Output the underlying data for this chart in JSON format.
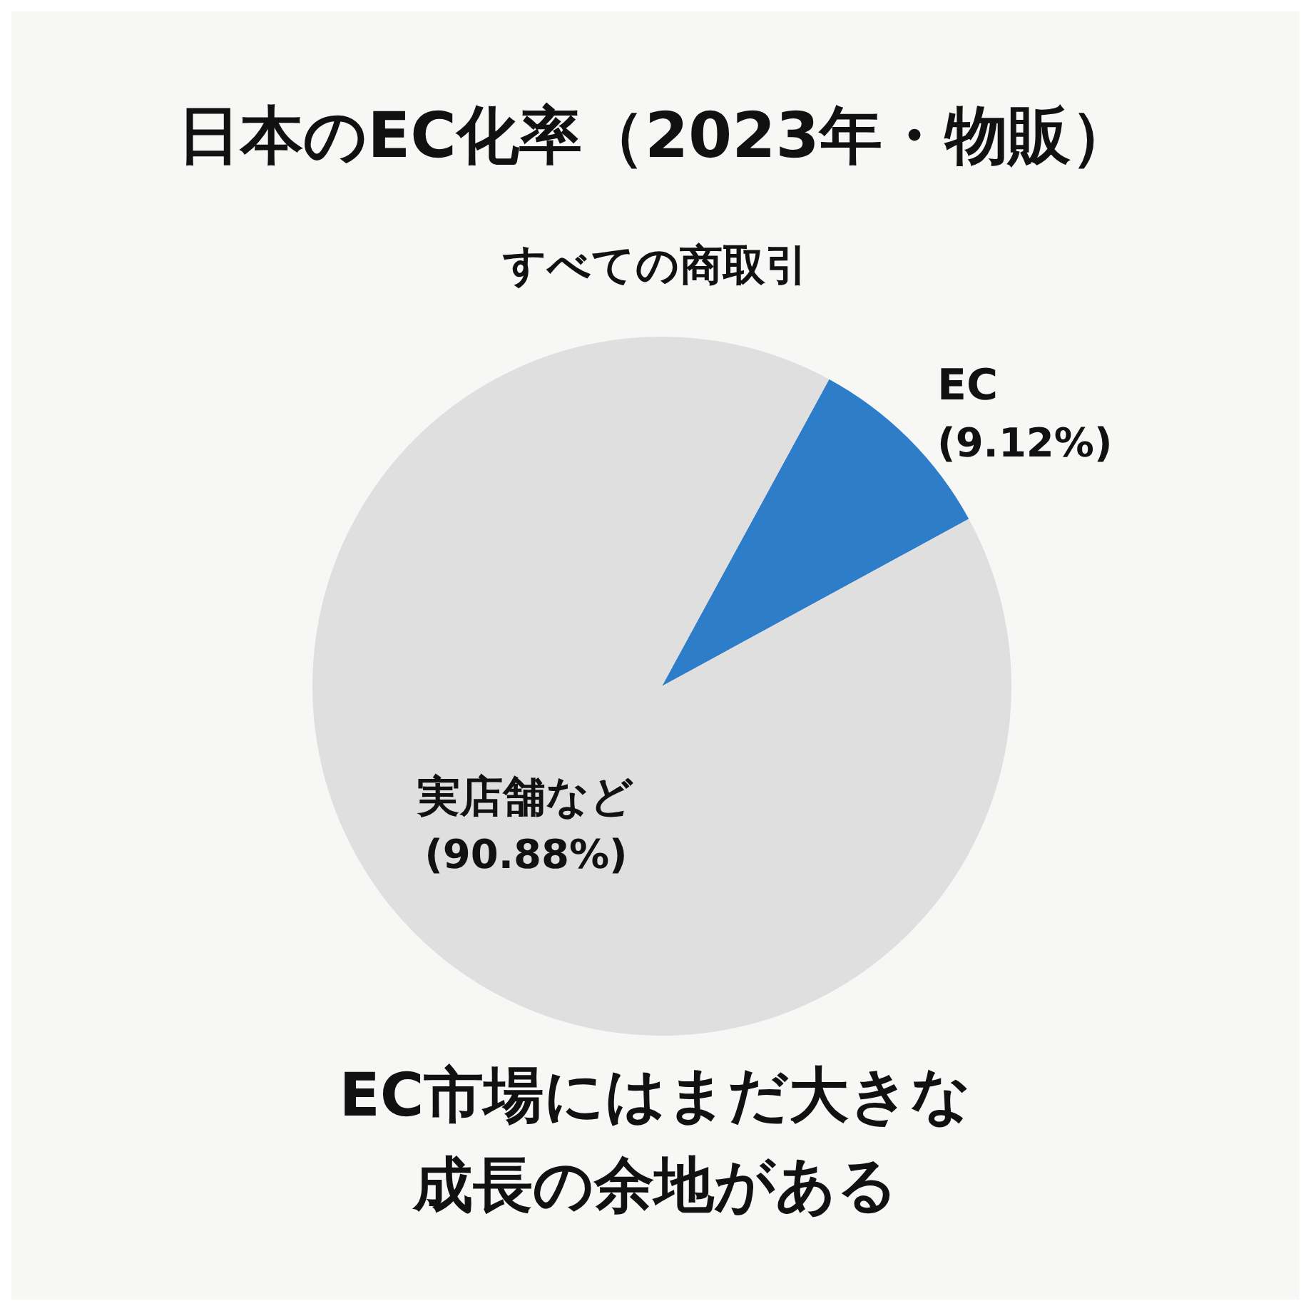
{
  "chart_data": {
    "type": "pie",
    "title": "日本のEC化率（2023年・物販）",
    "subtitle": "すべての商取引",
    "categories": [
      "EC",
      "実店舗など"
    ],
    "values": [
      9.12,
      90.88
    ],
    "colors": [
      "#2e7dc8",
      "#e0dfdf"
    ],
    "value_labels": [
      "(9.12%)",
      "(90.88%)"
    ],
    "annotations": [
      "EC市場にはまだ大きな",
      "成長の余地がある"
    ]
  }
}
